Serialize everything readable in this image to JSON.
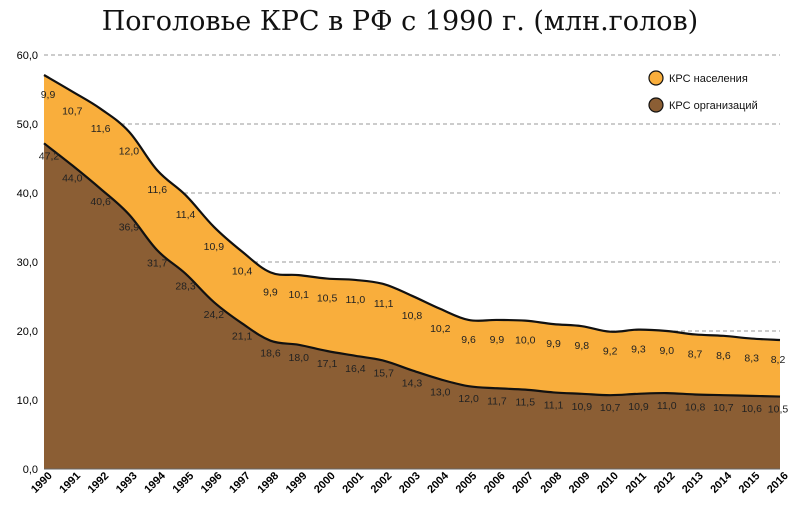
{
  "chart_data": {
    "type": "area",
    "title": "Поголовье КРС в РФ с 1990 г. (млн.голов)",
    "xlabel": "",
    "ylabel": "",
    "ylim": [
      0,
      60
    ],
    "yticks": [
      "0,0",
      "10,0",
      "20,0",
      "30,0",
      "40,0",
      "50,0",
      "60,0"
    ],
    "grid": true,
    "stacked": true,
    "legend_position": "top-right",
    "categories": [
      "1990",
      "1991",
      "1992",
      "1993",
      "1994",
      "1995",
      "1996",
      "1997",
      "1998",
      "1999",
      "2000",
      "2001",
      "2002",
      "2003",
      "2004",
      "2005",
      "2006",
      "2007",
      "2008",
      "2009",
      "2010",
      "2011",
      "2012",
      "2013",
      "2014",
      "2015",
      "2016"
    ],
    "series": [
      {
        "name": "КРС организаций",
        "color": "#8B5E34",
        "values": [
          47.2,
          44.0,
          40.6,
          36.9,
          31.7,
          28.3,
          24.2,
          21.1,
          18.6,
          18.0,
          17.1,
          16.4,
          15.7,
          14.3,
          13.0,
          12.0,
          11.7,
          11.5,
          11.1,
          10.9,
          10.7,
          10.9,
          11.0,
          10.8,
          10.7,
          10.6,
          10.5
        ],
        "labels": [
          "47,2",
          "44,0",
          "40,6",
          "36,9",
          "31,7",
          "28,3",
          "24,2",
          "21,1",
          "18,6",
          "18,0",
          "17,1",
          "16,4",
          "15,7",
          "14,3",
          "13,0",
          "12,0",
          "11,7",
          "11,5",
          "11,1",
          "10,9",
          "10,7",
          "10,9",
          "11,0",
          "10,8",
          "10,7",
          "10,6",
          "10,5"
        ]
      },
      {
        "name": "КРС населения",
        "color": "#F9AE3C",
        "values": [
          9.9,
          10.7,
          11.6,
          12.0,
          11.6,
          11.4,
          10.9,
          10.4,
          9.9,
          10.1,
          10.5,
          11.0,
          11.1,
          10.8,
          10.2,
          9.6,
          9.9,
          10.0,
          9.9,
          9.8,
          9.2,
          9.3,
          9.0,
          8.7,
          8.6,
          8.3,
          8.2
        ],
        "labels": [
          "9,9",
          "10,7",
          "11,6",
          "12,0",
          "11,6",
          "11,4",
          "10,9",
          "10,4",
          "9,9",
          "10,1",
          "10,5",
          "11,0",
          "11,1",
          "10,8",
          "10,2",
          "9,6",
          "9,9",
          "10,0",
          "9,9",
          "9,8",
          "9,2",
          "9,3",
          "9,0",
          "8,7",
          "8,6",
          "8,3",
          "8,2"
        ]
      }
    ],
    "legend": [
      {
        "name": "КРС населения",
        "color": "#F9AE3C"
      },
      {
        "name": "КРС организаций",
        "color": "#8B5E34"
      }
    ]
  }
}
